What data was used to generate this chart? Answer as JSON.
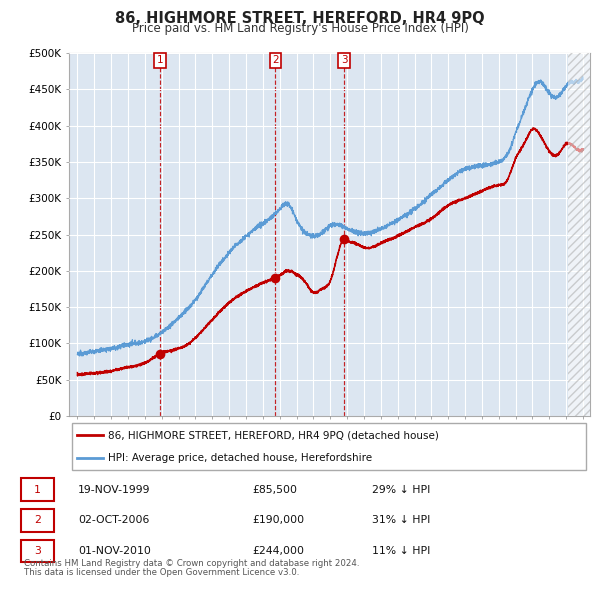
{
  "title": "86, HIGHMORE STREET, HEREFORD, HR4 9PQ",
  "subtitle": "Price paid vs. HM Land Registry's House Price Index (HPI)",
  "ylabel_ticks": [
    "£0",
    "£50K",
    "£100K",
    "£150K",
    "£200K",
    "£250K",
    "£300K",
    "£350K",
    "£400K",
    "£450K",
    "£500K"
  ],
  "ytick_values": [
    0,
    50000,
    100000,
    150000,
    200000,
    250000,
    300000,
    350000,
    400000,
    450000,
    500000
  ],
  "ylim": [
    0,
    500000
  ],
  "xlim_start": 1994.5,
  "xlim_end": 2025.4,
  "hpi_color": "#5b9bd5",
  "price_color": "#c00000",
  "plot_bg_color": "#dce6f1",
  "legend_label_red": "86, HIGHMORE STREET, HEREFORD, HR4 9PQ (detached house)",
  "legend_label_blue": "HPI: Average price, detached house, Herefordshire",
  "transactions": [
    {
      "num": 1,
      "date": "19-NOV-1999",
      "price": 85500,
      "price_str": "£85,500",
      "pct": "29%",
      "direction": "↓",
      "year": 1999.88
    },
    {
      "num": 2,
      "date": "02-OCT-2006",
      "price": 190000,
      "price_str": "£190,000",
      "pct": "31%",
      "direction": "↓",
      "year": 2006.75
    },
    {
      "num": 3,
      "date": "01-NOV-2010",
      "price": 244000,
      "price_str": "£244,000",
      "pct": "11%",
      "direction": "↓",
      "year": 2010.83
    }
  ],
  "footnote_line1": "Contains HM Land Registry data © Crown copyright and database right 2024.",
  "footnote_line2": "This data is licensed under the Open Government Licence v3.0.",
  "background_color": "#ffffff",
  "grid_color": "#ffffff",
  "hatch_start": 2024.08,
  "hpi_anchors_x": [
    1995.0,
    1996.0,
    1997.0,
    1998.0,
    1999.0,
    2000.0,
    2001.0,
    2002.0,
    2003.0,
    2004.0,
    2005.0,
    2006.0,
    2007.0,
    2007.5,
    2008.0,
    2009.0,
    2009.5,
    2010.0,
    2011.0,
    2012.0,
    2013.0,
    2014.0,
    2015.0,
    2016.0,
    2017.0,
    2018.0,
    2019.0,
    2020.0,
    2020.5,
    2021.0,
    2021.5,
    2022.0,
    2022.5,
    2023.0,
    2023.5,
    2024.0,
    2024.5,
    2025.0
  ],
  "hpi_anchors_y": [
    85000,
    89000,
    93000,
    98000,
    103000,
    115000,
    135000,
    160000,
    195000,
    225000,
    248000,
    265000,
    285000,
    292000,
    270000,
    248000,
    252000,
    262000,
    258000,
    252000,
    258000,
    270000,
    285000,
    305000,
    325000,
    340000,
    345000,
    350000,
    360000,
    390000,
    420000,
    450000,
    460000,
    445000,
    440000,
    455000,
    460000,
    465000
  ],
  "red_anchors_x": [
    1995.0,
    1996.0,
    1997.0,
    1998.0,
    1999.0,
    1999.88,
    2000.5,
    2001.5,
    2002.5,
    2003.5,
    2004.5,
    2005.5,
    2006.5,
    2006.75,
    2007.5,
    2008.0,
    2008.5,
    2009.0,
    2009.5,
    2010.0,
    2010.83,
    2011.0,
    2011.5,
    2012.0,
    2013.0,
    2014.0,
    2015.0,
    2016.0,
    2017.0,
    2018.0,
    2019.0,
    2020.0,
    2020.5,
    2021.0,
    2021.5,
    2022.0,
    2022.5,
    2023.0,
    2023.5,
    2024.0,
    2024.5,
    2025.0
  ],
  "red_anchors_y": [
    57000,
    59000,
    62000,
    67000,
    73000,
    85500,
    90000,
    98000,
    120000,
    145000,
    165000,
    178000,
    188000,
    190000,
    200000,
    195000,
    185000,
    170000,
    175000,
    186000,
    244000,
    242000,
    238000,
    232000,
    238000,
    248000,
    260000,
    272000,
    290000,
    300000,
    310000,
    318000,
    325000,
    355000,
    375000,
    395000,
    385000,
    365000,
    360000,
    375000,
    370000,
    368000
  ]
}
